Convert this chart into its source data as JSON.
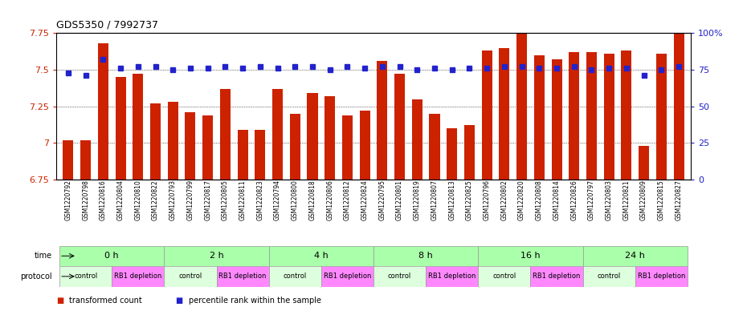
{
  "title": "GDS5350 / 7992737",
  "samples": [
    "GSM1220792",
    "GSM1220798",
    "GSM1220816",
    "GSM1220804",
    "GSM1220810",
    "GSM1220822",
    "GSM1220793",
    "GSM1220799",
    "GSM1220817",
    "GSM1220805",
    "GSM1220811",
    "GSM1220823",
    "GSM1220794",
    "GSM1220800",
    "GSM1220818",
    "GSM1220806",
    "GSM1220812",
    "GSM1220824",
    "GSM1220795",
    "GSM1220801",
    "GSM1220819",
    "GSM1220807",
    "GSM1220813",
    "GSM1220825",
    "GSM1220796",
    "GSM1220802",
    "GSM1220820",
    "GSM1220808",
    "GSM1220814",
    "GSM1220826",
    "GSM1220797",
    "GSM1220803",
    "GSM1220821",
    "GSM1220809",
    "GSM1220815",
    "GSM1220827"
  ],
  "bar_values": [
    7.02,
    7.02,
    7.68,
    7.45,
    7.47,
    7.27,
    7.28,
    7.21,
    7.19,
    7.37,
    7.09,
    7.09,
    7.37,
    7.2,
    7.34,
    7.32,
    7.19,
    7.22,
    7.56,
    7.47,
    7.3,
    7.2,
    7.1,
    7.12,
    7.63,
    7.65,
    7.75,
    7.6,
    7.57,
    7.62,
    7.62,
    7.61,
    7.63,
    6.98,
    7.61,
    7.75
  ],
  "percentile_values": [
    7.48,
    7.46,
    7.57,
    7.51,
    7.52,
    7.52,
    7.5,
    7.51,
    7.51,
    7.52,
    7.51,
    7.52,
    7.51,
    7.52,
    7.52,
    7.5,
    7.52,
    7.51,
    7.52,
    7.52,
    7.5,
    7.51,
    7.5,
    7.51,
    7.51,
    7.52,
    7.52,
    7.51,
    7.51,
    7.52,
    7.5,
    7.51,
    7.51,
    7.46,
    7.5,
    7.52
  ],
  "ylim_left": [
    6.75,
    7.75
  ],
  "ylim_right": [
    0,
    100
  ],
  "yticks_left": [
    6.75,
    7.0,
    7.25,
    7.5,
    7.75
  ],
  "ytick_labels_left": [
    "6.75",
    "7",
    "7.25",
    "7.5",
    "7.75"
  ],
  "yticks_right": [
    0,
    25,
    50,
    75,
    100
  ],
  "ytick_labels_right": [
    "0",
    "25",
    "50",
    "75",
    "100%"
  ],
  "bar_color": "#cc2200",
  "percentile_color": "#2222cc",
  "background_color": "#ffffff",
  "time_groups": [
    {
      "label": "0 h",
      "start": 0,
      "end": 6
    },
    {
      "label": "2 h",
      "start": 6,
      "end": 12
    },
    {
      "label": "4 h",
      "start": 12,
      "end": 18
    },
    {
      "label": "8 h",
      "start": 18,
      "end": 24
    },
    {
      "label": "16 h",
      "start": 24,
      "end": 30
    },
    {
      "label": "24 h",
      "start": 30,
      "end": 36
    }
  ],
  "protocol_groups": [
    {
      "label": "control",
      "start": 0,
      "end": 3,
      "color": "#ddffdd"
    },
    {
      "label": "RB1 depletion",
      "start": 3,
      "end": 6,
      "color": "#ff88ff"
    },
    {
      "label": "control",
      "start": 6,
      "end": 9,
      "color": "#ddffdd"
    },
    {
      "label": "RB1 depletion",
      "start": 9,
      "end": 12,
      "color": "#ff88ff"
    },
    {
      "label": "control",
      "start": 12,
      "end": 15,
      "color": "#ddffdd"
    },
    {
      "label": "RB1 depletion",
      "start": 15,
      "end": 18,
      "color": "#ff88ff"
    },
    {
      "label": "control",
      "start": 18,
      "end": 21,
      "color": "#ddffdd"
    },
    {
      "label": "RB1 depletion",
      "start": 21,
      "end": 24,
      "color": "#ff88ff"
    },
    {
      "label": "control",
      "start": 24,
      "end": 27,
      "color": "#ddffdd"
    },
    {
      "label": "RB1 depletion",
      "start": 27,
      "end": 30,
      "color": "#ff88ff"
    },
    {
      "label": "control",
      "start": 30,
      "end": 33,
      "color": "#ddffdd"
    },
    {
      "label": "RB1 depletion",
      "start": 33,
      "end": 36,
      "color": "#ff88ff"
    }
  ],
  "time_bg_color": "#aaffaa",
  "legend_bar_label": "transformed count",
  "legend_pct_label": "percentile rank within the sample"
}
